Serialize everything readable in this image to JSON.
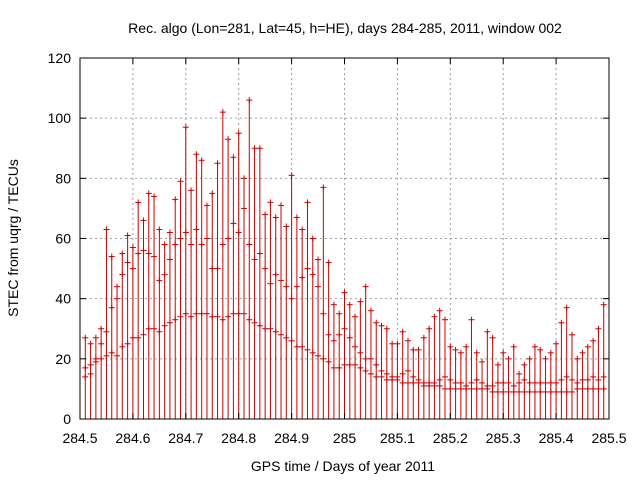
{
  "chart_data": {
    "type": "scatter",
    "title": "Rec. algo (Lon=281, Lat=45, h=HE), days 284-285, 2011, window 002",
    "xlabel": "GPS time / Days of year 2011",
    "ylabel": "STEC from uqrg / TECUs",
    "xlim": [
      284.5,
      285.5
    ],
    "ylim": [
      0,
      120
    ],
    "xticks": [
      "284.5",
      "284.6",
      "284.7",
      "284.8",
      "284.9",
      "285",
      "285.1",
      "285.2",
      "285.3",
      "285.4",
      "285.5"
    ],
    "yticks": [
      "0",
      "20",
      "40",
      "60",
      "80",
      "100",
      "120"
    ],
    "grid": true,
    "legend": "none",
    "marker": "plus",
    "style": "points with vertical error bars from 0",
    "color": "#cc0000",
    "x": [
      284.51,
      284.52,
      284.53,
      284.54,
      284.55,
      284.56,
      284.57,
      284.58,
      284.59,
      284.6,
      284.61,
      284.62,
      284.63,
      284.64,
      284.65,
      284.66,
      284.67,
      284.68,
      284.69,
      284.7,
      284.71,
      284.72,
      284.73,
      284.74,
      284.75,
      284.76,
      284.77,
      284.78,
      284.79,
      284.8,
      284.81,
      284.82,
      284.83,
      284.84,
      284.85,
      284.86,
      284.87,
      284.88,
      284.89,
      284.9,
      284.91,
      284.92,
      284.93,
      284.94,
      284.95,
      284.96,
      284.97,
      284.98,
      284.99,
      285.0,
      285.01,
      285.02,
      285.03,
      285.04,
      285.05,
      285.06,
      285.07,
      285.08,
      285.09,
      285.1,
      285.11,
      285.12,
      285.13,
      285.14,
      285.15,
      285.16,
      285.17,
      285.18,
      285.19,
      285.2,
      285.21,
      285.22,
      285.23,
      285.24,
      285.25,
      285.26,
      285.27,
      285.28,
      285.29,
      285.3,
      285.31,
      285.32,
      285.33,
      285.34,
      285.35,
      285.36,
      285.37,
      285.38,
      285.39,
      285.4,
      285.41,
      285.42,
      285.43,
      285.44,
      285.45,
      285.46,
      285.47,
      285.48,
      285.49
    ],
    "series": [
      {
        "values": [
          27,
          25,
          27,
          30,
          63,
          54,
          44,
          55,
          61,
          57,
          72,
          66,
          75,
          74,
          63,
          58,
          62,
          73,
          79,
          97,
          76,
          88,
          86,
          71,
          75,
          85,
          102,
          93,
          87,
          95,
          80,
          106,
          90,
          90,
          68,
          72,
          67,
          71,
          64,
          81,
          67,
          63,
          72,
          60,
          53,
          77,
          52,
          38,
          35,
          42,
          38,
          34,
          39,
          44,
          36,
          32,
          31,
          30,
          25,
          25,
          29,
          26,
          23,
          23,
          27,
          30,
          34,
          36,
          33,
          24,
          23,
          22,
          24,
          33,
          22,
          19,
          29,
          27,
          18,
          22,
          20,
          24,
          15,
          18,
          20,
          24,
          23,
          20,
          22,
          25,
          32,
          37,
          28,
          20,
          22,
          24,
          26,
          30,
          38
        ]
      },
      {
        "values": [
          17,
          18,
          20,
          25,
          29,
          37,
          40,
          48,
          52,
          50,
          55,
          56,
          55,
          54,
          46,
          48,
          53,
          58,
          60,
          62,
          58,
          63,
          58,
          60,
          50,
          50,
          58,
          60,
          65,
          62,
          70,
          58,
          53,
          55,
          50,
          45,
          48,
          46,
          44,
          40,
          44,
          47,
          50,
          48,
          44,
          35,
          28,
          26,
          28,
          30,
          27,
          24,
          22,
          20,
          20,
          18,
          16,
          15,
          14,
          14,
          15,
          16,
          14,
          13,
          12,
          12,
          12,
          13,
          14,
          13,
          12,
          12,
          11,
          12,
          13,
          12,
          11,
          11,
          12,
          12,
          12,
          11,
          12,
          13,
          12,
          12,
          12,
          12,
          12,
          12,
          13,
          14,
          13,
          12,
          13,
          13,
          14,
          13,
          14
        ]
      },
      {
        "values": [
          14,
          15,
          19,
          20,
          21,
          22,
          21,
          24,
          25,
          27,
          27,
          28,
          30,
          30,
          29,
          31,
          32,
          33,
          34,
          35,
          34,
          35,
          35,
          35,
          34,
          34,
          33,
          34,
          35,
          35,
          35,
          33,
          32,
          31,
          30,
          30,
          29,
          28,
          27,
          26,
          24,
          24,
          23,
          22,
          21,
          20,
          19,
          17,
          17,
          18,
          18,
          18,
          17,
          16,
          15,
          14,
          14,
          13,
          13,
          13,
          12,
          12,
          12,
          12,
          11,
          11,
          11,
          11,
          10,
          10,
          10,
          10,
          10,
          10,
          10,
          10,
          10,
          9,
          9,
          9,
          9,
          9,
          9,
          9,
          9,
          9,
          9,
          9,
          9,
          9,
          9,
          9,
          9,
          10,
          10,
          10,
          10,
          10,
          10
        ]
      }
    ]
  }
}
